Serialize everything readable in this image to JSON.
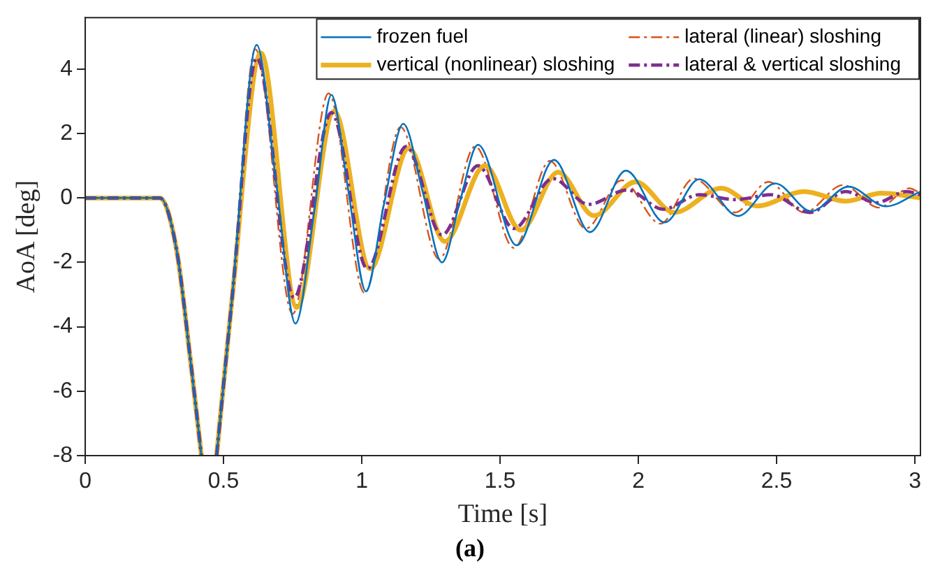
{
  "chart_data": {
    "type": "line",
    "xlabel": "Time [s]",
    "ylabel": "AoA [deg]",
    "annotations": [
      "(a)"
    ],
    "xlim": [
      0,
      3.02
    ],
    "ylim": [
      -8,
      5.6
    ],
    "xticks": [
      0,
      0.5,
      1,
      1.5,
      2,
      2.5,
      3
    ],
    "yticks": [
      -8,
      -6,
      -4,
      -2,
      0,
      2,
      4
    ],
    "grid": false,
    "legend": "top right",
    "marker": "none",
    "series": [
      {
        "name": "frozen fuel",
        "color": "#0072bd",
        "line_style": "solid",
        "x": [
          0,
          0.27,
          0.33,
          0.38,
          0.42,
          0.45,
          0.475,
          0.53,
          0.62,
          0.69,
          0.76,
          0.83,
          0.89,
          0.95,
          1.015,
          1.08,
          1.15,
          1.22,
          1.29,
          1.355,
          1.42,
          1.56,
          1.695,
          1.825,
          1.955,
          2.095,
          2.22,
          2.36,
          2.495,
          2.625,
          2.76,
          2.895,
          3.02
        ],
        "values": [
          0,
          0,
          -1.6,
          -5,
          -8,
          null,
          -8,
          -3.2,
          4.75,
          0.5,
          -3.9,
          -0.3,
          3.2,
          0.3,
          -2.9,
          -0.2,
          2.3,
          0.2,
          -2,
          -0.1,
          1.65,
          -1.47,
          1.18,
          -1.06,
          0.85,
          -0.76,
          0.58,
          -0.56,
          0.45,
          -0.41,
          0.35,
          -0.26,
          0.2
        ]
      },
      {
        "name": "lateral (linear) sloshing",
        "color": "#d95319",
        "line_style": "dashdot",
        "x": [
          0,
          0.27,
          0.33,
          0.38,
          0.42,
          0.45,
          0.475,
          0.53,
          0.615,
          0.75,
          0.88,
          1.01,
          1.14,
          1.28,
          1.41,
          1.55,
          1.68,
          1.81,
          1.94,
          2.08,
          2.2,
          2.35,
          2.47,
          2.6,
          2.74,
          2.87,
          2.98,
          3.02
        ],
        "values": [
          0,
          0,
          -1.6,
          -5,
          -8,
          null,
          -8,
          -3.2,
          4.62,
          -3.6,
          3.25,
          -2.95,
          2.2,
          -1.9,
          1.6,
          -1.55,
          1.15,
          -0.95,
          0.55,
          -0.8,
          0.6,
          -0.45,
          0.5,
          -0.45,
          0.4,
          -0.3,
          0.3,
          0.15
        ]
      },
      {
        "name": "vertical (nonlinear) sloshing",
        "color": "#edb120",
        "line_style": "solid",
        "x": [
          0,
          0.27,
          0.33,
          0.38,
          0.42,
          0.45,
          0.475,
          0.53,
          0.635,
          0.765,
          0.9,
          1.03,
          1.17,
          1.3,
          1.445,
          1.575,
          1.71,
          1.84,
          1.99,
          2.13,
          2.3,
          2.43,
          2.6,
          2.75,
          2.88,
          3.02
        ],
        "values": [
          0,
          0,
          -1.6,
          -5,
          -8,
          null,
          -8,
          -3.2,
          4.5,
          -3.4,
          2.7,
          -2.2,
          1.55,
          -1.35,
          1,
          -1,
          0.8,
          -0.55,
          0.5,
          -0.45,
          0.3,
          -0.25,
          0.2,
          -0.1,
          0.15,
          0
        ]
      },
      {
        "name": "lateral & vertical sloshing",
        "color": "#7e2f8e",
        "line_style": "dashdot",
        "x": [
          0,
          0.27,
          0.33,
          0.38,
          0.42,
          0.45,
          0.475,
          0.53,
          0.62,
          0.755,
          0.89,
          1.02,
          1.16,
          1.29,
          1.42,
          1.55,
          1.69,
          1.82,
          1.96,
          2.09,
          2.22,
          2.35,
          2.48,
          2.62,
          2.75,
          2.86,
          2.97,
          3.02
        ],
        "values": [
          0,
          0,
          -1.6,
          -5,
          -8,
          null,
          -8,
          -3.2,
          4.35,
          -3.1,
          2.65,
          -2.2,
          1.6,
          -1.15,
          1,
          -0.95,
          0.6,
          -0.2,
          0.25,
          -0.35,
          0.1,
          -0.05,
          0.1,
          -0.45,
          0.2,
          -0.15,
          0.2,
          0.1
        ]
      }
    ]
  }
}
